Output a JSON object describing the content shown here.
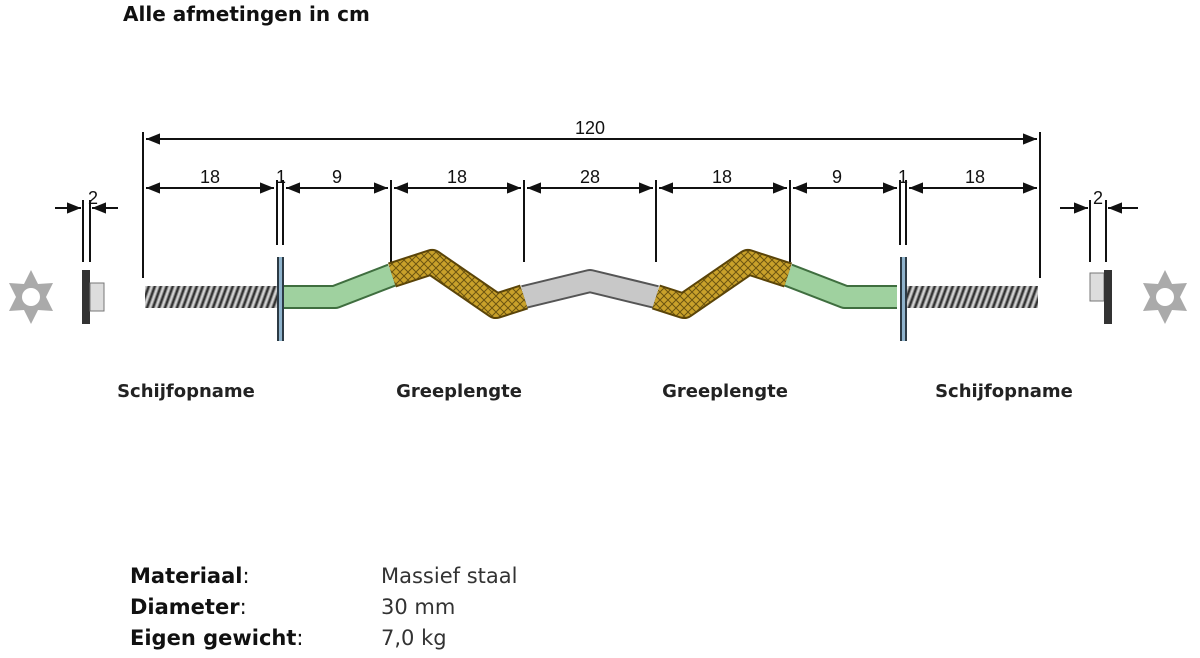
{
  "title": "Alle afmetingen in cm",
  "dimensions": {
    "total": "120",
    "segments": [
      "18",
      "1",
      "9",
      "18",
      "28",
      "18",
      "9",
      "1",
      "18"
    ],
    "collar_left": "2",
    "collar_right": "2"
  },
  "labels": [
    "Schijfopname",
    "Greeplengte",
    "Greeplengte",
    "Schijfopname"
  ],
  "specs": [
    {
      "key": "Materiaal",
      "value": "Massief staal"
    },
    {
      "key": "Diameter",
      "value": "30 mm"
    },
    {
      "key": "Eigen gewicht",
      "value": "7,0 kg"
    }
  ],
  "colors": {
    "grip": "#c9a12a",
    "sleeve": "#9fd19f",
    "center": "#c8c8c8",
    "thread": "#777777",
    "plate": "#8fb3cc"
  }
}
